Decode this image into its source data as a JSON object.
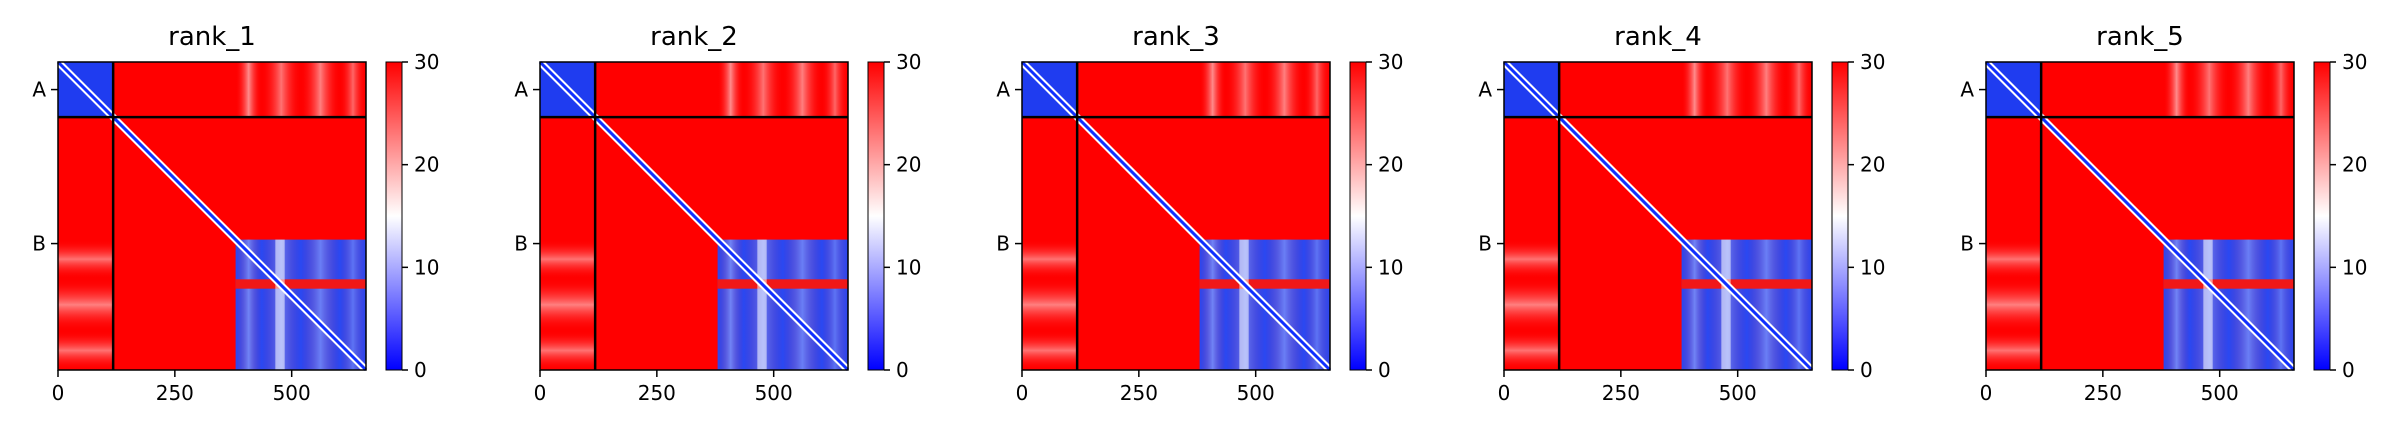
{
  "chart_data": [
    {
      "type": "heatmap",
      "title": "rank_1",
      "xlabel": "",
      "ylabel": "",
      "x_ticks": [
        0,
        250,
        500
      ],
      "y_ticks": [
        "A",
        "B"
      ],
      "xlim": [
        0,
        659
      ],
      "chains": [
        {
          "name": "A",
          "start": 0,
          "end": 118
        },
        {
          "name": "B",
          "start": 118,
          "end": 659
        }
      ],
      "colorbar": {
        "min": 0,
        "max": 30,
        "ticks": [
          0,
          10,
          20,
          30
        ],
        "colors": [
          "#0000ff",
          "#ffffff",
          "#ff0000"
        ]
      },
      "low_error_stripes": [
        {
          "axis": "col",
          "start": 380,
          "end": 659
        },
        {
          "axis": "row",
          "start": 380,
          "end": 659
        }
      ],
      "high_error_band": [
        465,
        485
      ]
    },
    {
      "type": "heatmap",
      "title": "rank_2",
      "xlabel": "",
      "ylabel": "",
      "x_ticks": [
        0,
        250,
        500
      ],
      "y_ticks": [
        "A",
        "B"
      ],
      "xlim": [
        0,
        659
      ],
      "chains": [
        {
          "name": "A",
          "start": 0,
          "end": 118
        },
        {
          "name": "B",
          "start": 118,
          "end": 659
        }
      ],
      "colorbar": {
        "min": 0,
        "max": 30,
        "ticks": [
          0,
          10,
          20,
          30
        ],
        "colors": [
          "#0000ff",
          "#ffffff",
          "#ff0000"
        ]
      },
      "low_error_stripes": [
        {
          "axis": "col",
          "start": 380,
          "end": 659
        },
        {
          "axis": "row",
          "start": 380,
          "end": 659
        }
      ],
      "high_error_band": [
        465,
        485
      ]
    },
    {
      "type": "heatmap",
      "title": "rank_3",
      "xlabel": "",
      "ylabel": "",
      "x_ticks": [
        0,
        250,
        500
      ],
      "y_ticks": [
        "A",
        "B"
      ],
      "xlim": [
        0,
        659
      ],
      "chains": [
        {
          "name": "A",
          "start": 0,
          "end": 118
        },
        {
          "name": "B",
          "start": 118,
          "end": 659
        }
      ],
      "colorbar": {
        "min": 0,
        "max": 30,
        "ticks": [
          0,
          10,
          20,
          30
        ],
        "colors": [
          "#0000ff",
          "#ffffff",
          "#ff0000"
        ]
      },
      "low_error_stripes": [
        {
          "axis": "col",
          "start": 380,
          "end": 659
        },
        {
          "axis": "row",
          "start": 380,
          "end": 659
        }
      ],
      "high_error_band": [
        465,
        485
      ]
    },
    {
      "type": "heatmap",
      "title": "rank_4",
      "xlabel": "",
      "ylabel": "",
      "x_ticks": [
        0,
        250,
        500
      ],
      "y_ticks": [
        "A",
        "B"
      ],
      "xlim": [
        0,
        659
      ],
      "chains": [
        {
          "name": "A",
          "start": 0,
          "end": 118
        },
        {
          "name": "B",
          "start": 118,
          "end": 659
        }
      ],
      "colorbar": {
        "min": 0,
        "max": 30,
        "ticks": [
          0,
          10,
          20,
          30
        ],
        "colors": [
          "#0000ff",
          "#ffffff",
          "#ff0000"
        ]
      },
      "low_error_stripes": [
        {
          "axis": "col",
          "start": 380,
          "end": 659
        },
        {
          "axis": "row",
          "start": 380,
          "end": 659
        }
      ],
      "high_error_band": [
        465,
        485
      ]
    },
    {
      "type": "heatmap",
      "title": "rank_5",
      "xlabel": "",
      "ylabel": "",
      "x_ticks": [
        0,
        250,
        500
      ],
      "y_ticks": [
        "A",
        "B"
      ],
      "xlim": [
        0,
        659
      ],
      "chains": [
        {
          "name": "A",
          "start": 0,
          "end": 118
        },
        {
          "name": "B",
          "start": 118,
          "end": 659
        }
      ],
      "colorbar": {
        "min": 0,
        "max": 30,
        "ticks": [
          0,
          10,
          20,
          30
        ],
        "colors": [
          "#0000ff",
          "#ffffff",
          "#ff0000"
        ]
      },
      "low_error_stripes": [
        {
          "axis": "col",
          "start": 380,
          "end": 659
        },
        {
          "axis": "row",
          "start": 380,
          "end": 659
        }
      ],
      "high_error_band": [
        465,
        485
      ]
    }
  ]
}
